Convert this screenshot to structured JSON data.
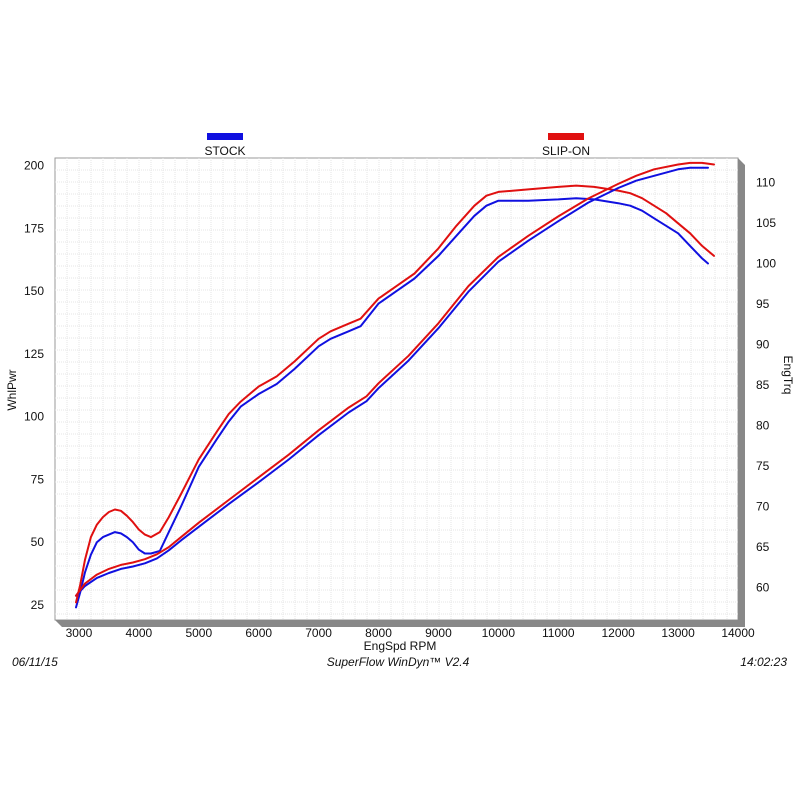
{
  "chart_data": {
    "type": "line",
    "xlabel": "EngSpd  RPM",
    "ylabel_left": "WhlPwr",
    "ylabel_right": "EngTrq",
    "xlim": [
      2600,
      14000
    ],
    "ylim_left": [
      19,
      203
    ],
    "ylim_right": [
      56,
      113
    ],
    "x_ticks": [
      3000,
      4000,
      5000,
      6000,
      7000,
      8000,
      9000,
      10000,
      11000,
      12000,
      13000,
      14000
    ],
    "y_left_ticks": [
      25,
      50,
      75,
      100,
      125,
      150,
      175,
      200
    ],
    "y_right_ticks": [
      60,
      65,
      70,
      75,
      80,
      85,
      90,
      95,
      100,
      105,
      110
    ],
    "grid": true,
    "legend_position": "top",
    "series": [
      {
        "name": "STOCK",
        "measure": "WhlPwr",
        "axis": "left",
        "color": "#1010e0",
        "points": [
          [
            2950,
            24
          ],
          [
            3020,
            30
          ],
          [
            3100,
            38
          ],
          [
            3200,
            45
          ],
          [
            3300,
            50
          ],
          [
            3400,
            52
          ],
          [
            3500,
            53
          ],
          [
            3600,
            54
          ],
          [
            3700,
            53.5
          ],
          [
            3800,
            52
          ],
          [
            3900,
            50
          ],
          [
            4000,
            47
          ],
          [
            4100,
            45.5
          ],
          [
            4200,
            45.5
          ],
          [
            4350,
            46.5
          ],
          [
            4500,
            54
          ],
          [
            4700,
            64
          ],
          [
            5000,
            80
          ],
          [
            5300,
            91
          ],
          [
            5500,
            98
          ],
          [
            5700,
            104
          ],
          [
            6000,
            109
          ],
          [
            6300,
            113
          ],
          [
            6600,
            119
          ],
          [
            7000,
            128
          ],
          [
            7200,
            131
          ],
          [
            7500,
            134
          ],
          [
            7700,
            136
          ],
          [
            8000,
            145
          ],
          [
            8300,
            150
          ],
          [
            8600,
            155
          ],
          [
            9000,
            164
          ],
          [
            9300,
            172
          ],
          [
            9600,
            180
          ],
          [
            9800,
            184
          ],
          [
            10000,
            186
          ],
          [
            10500,
            186
          ],
          [
            11000,
            186.5
          ],
          [
            11300,
            187
          ],
          [
            11600,
            186.5
          ],
          [
            12000,
            185
          ],
          [
            12200,
            184
          ],
          [
            12400,
            182
          ],
          [
            12600,
            179
          ],
          [
            12800,
            176
          ],
          [
            13000,
            173
          ],
          [
            13200,
            168
          ],
          [
            13400,
            163
          ],
          [
            13500,
            161
          ]
        ]
      },
      {
        "name": "SLIP-ON",
        "measure": "WhlPwr",
        "axis": "left",
        "color": "#e01010",
        "points": [
          [
            2950,
            26
          ],
          [
            3020,
            33
          ],
          [
            3100,
            43
          ],
          [
            3200,
            52
          ],
          [
            3300,
            57
          ],
          [
            3400,
            60
          ],
          [
            3500,
            62
          ],
          [
            3600,
            63
          ],
          [
            3700,
            62.5
          ],
          [
            3800,
            60.5
          ],
          [
            3900,
            58
          ],
          [
            4000,
            55
          ],
          [
            4100,
            53
          ],
          [
            4200,
            52
          ],
          [
            4350,
            54
          ],
          [
            4500,
            60
          ],
          [
            4700,
            69
          ],
          [
            5000,
            83
          ],
          [
            5300,
            94
          ],
          [
            5500,
            101
          ],
          [
            5700,
            106
          ],
          [
            6000,
            112
          ],
          [
            6300,
            116
          ],
          [
            6600,
            122
          ],
          [
            7000,
            131
          ],
          [
            7200,
            134
          ],
          [
            7500,
            137
          ],
          [
            7700,
            139
          ],
          [
            8000,
            147
          ],
          [
            8300,
            152
          ],
          [
            8600,
            157
          ],
          [
            9000,
            167
          ],
          [
            9300,
            176
          ],
          [
            9600,
            184
          ],
          [
            9800,
            188
          ],
          [
            10000,
            189.5
          ],
          [
            10500,
            190.5
          ],
          [
            11000,
            191.5
          ],
          [
            11300,
            192
          ],
          [
            11600,
            191.5
          ],
          [
            12000,
            190
          ],
          [
            12200,
            189
          ],
          [
            12400,
            187
          ],
          [
            12600,
            184
          ],
          [
            12800,
            181
          ],
          [
            13000,
            177
          ],
          [
            13200,
            173
          ],
          [
            13400,
            168
          ],
          [
            13600,
            164
          ]
        ]
      },
      {
        "name": "STOCK",
        "measure": "EngTrq",
        "axis": "right",
        "color": "#1010e0",
        "points": [
          [
            2950,
            59
          ],
          [
            3100,
            60.2
          ],
          [
            3300,
            61.2
          ],
          [
            3500,
            61.8
          ],
          [
            3700,
            62.3
          ],
          [
            3900,
            62.6
          ],
          [
            4100,
            63
          ],
          [
            4300,
            63.6
          ],
          [
            4500,
            64.6
          ],
          [
            4700,
            65.8
          ],
          [
            5000,
            67.5
          ],
          [
            5500,
            70.3
          ],
          [
            6000,
            73
          ],
          [
            6500,
            75.8
          ],
          [
            7000,
            78.8
          ],
          [
            7500,
            81.6
          ],
          [
            7800,
            83
          ],
          [
            8000,
            84.6
          ],
          [
            8500,
            88
          ],
          [
            9000,
            92
          ],
          [
            9500,
            96.5
          ],
          [
            10000,
            100.2
          ],
          [
            10500,
            102.8
          ],
          [
            11000,
            105.2
          ],
          [
            11500,
            107.5
          ],
          [
            12000,
            109.3
          ],
          [
            12300,
            110.2
          ],
          [
            12600,
            110.8
          ],
          [
            13000,
            111.6
          ],
          [
            13200,
            111.8
          ],
          [
            13500,
            111.8
          ]
        ]
      },
      {
        "name": "SLIP-ON",
        "measure": "EngTrq",
        "axis": "right",
        "color": "#e01010",
        "points": [
          [
            2950,
            59
          ],
          [
            3100,
            60.5
          ],
          [
            3300,
            61.6
          ],
          [
            3500,
            62.3
          ],
          [
            3700,
            62.8
          ],
          [
            3900,
            63.1
          ],
          [
            4100,
            63.5
          ],
          [
            4300,
            64.1
          ],
          [
            4500,
            65
          ],
          [
            4700,
            66.2
          ],
          [
            5000,
            68
          ],
          [
            5500,
            70.8
          ],
          [
            6000,
            73.6
          ],
          [
            6500,
            76.4
          ],
          [
            7000,
            79.4
          ],
          [
            7500,
            82.2
          ],
          [
            7800,
            83.6
          ],
          [
            8000,
            85.2
          ],
          [
            8500,
            88.6
          ],
          [
            9000,
            92.6
          ],
          [
            9500,
            97.2
          ],
          [
            10000,
            100.8
          ],
          [
            10500,
            103.4
          ],
          [
            11000,
            105.8
          ],
          [
            11500,
            108
          ],
          [
            12000,
            109.8
          ],
          [
            12300,
            110.8
          ],
          [
            12600,
            111.6
          ],
          [
            13000,
            112.2
          ],
          [
            13200,
            112.4
          ],
          [
            13400,
            112.4
          ],
          [
            13600,
            112.2
          ]
        ]
      }
    ]
  },
  "footer": {
    "date": "06/11/15",
    "software": "SuperFlow WinDyn™  V2.4",
    "time": "14:02:23"
  }
}
